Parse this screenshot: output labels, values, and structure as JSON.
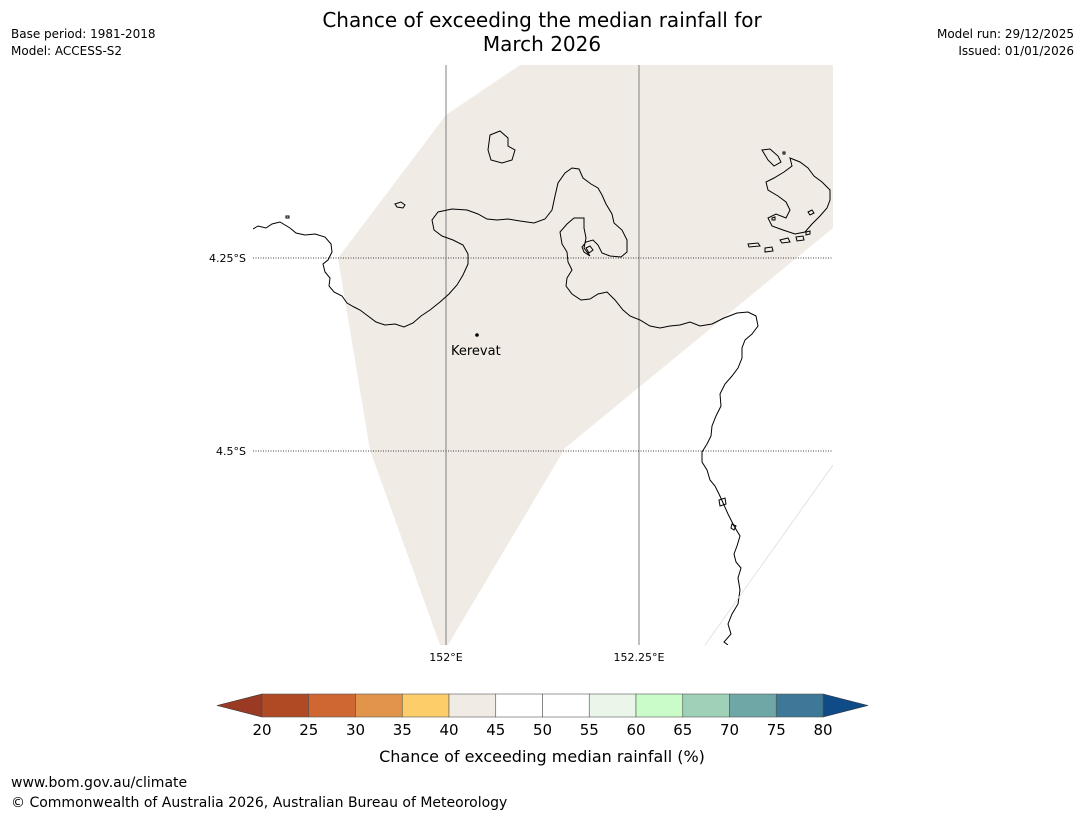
{
  "title": {
    "line1": "Chance of exceeding the median rainfall for",
    "line2": "March 2026"
  },
  "meta_left": {
    "base_period": "Base period: 1981-2018",
    "model": "Model: ACCESS-S2"
  },
  "meta_right": {
    "model_run": "Model run: 29/12/2025",
    "issued": "Issued: 01/01/2026"
  },
  "map": {
    "lat_labels": [
      "4.25°S",
      "4.5°S"
    ],
    "lon_labels": [
      "152°E",
      "152.25°E"
    ],
    "place": {
      "name": "Kerevat"
    },
    "colors": {
      "land": "#ffffff",
      "category_40_45": "#f0ebe5",
      "coastline": "#000000",
      "gridline": "#808080"
    }
  },
  "legend": {
    "title": "Chance of exceeding median rainfall (%)",
    "ticks": [
      "20",
      "25",
      "30",
      "35",
      "40",
      "45",
      "50",
      "55",
      "60",
      "65",
      "70",
      "75",
      "80"
    ],
    "under_color": "#9b3a24",
    "over_color": "#0f4c87",
    "bin_colors": [
      "#b04a25",
      "#cf6732",
      "#e2954a",
      "#fdcd6a",
      "#f0ebe5",
      "#ffffff",
      "#ffffff",
      "#eaf6ea",
      "#c9fcc9",
      "#9ed1b8",
      "#6fa6a6",
      "#3e7898"
    ]
  },
  "footer": {
    "url": "www.bom.gov.au/climate",
    "copyright": "© Commonwealth of Australia 2026, Australian Bureau of Meteorology"
  }
}
